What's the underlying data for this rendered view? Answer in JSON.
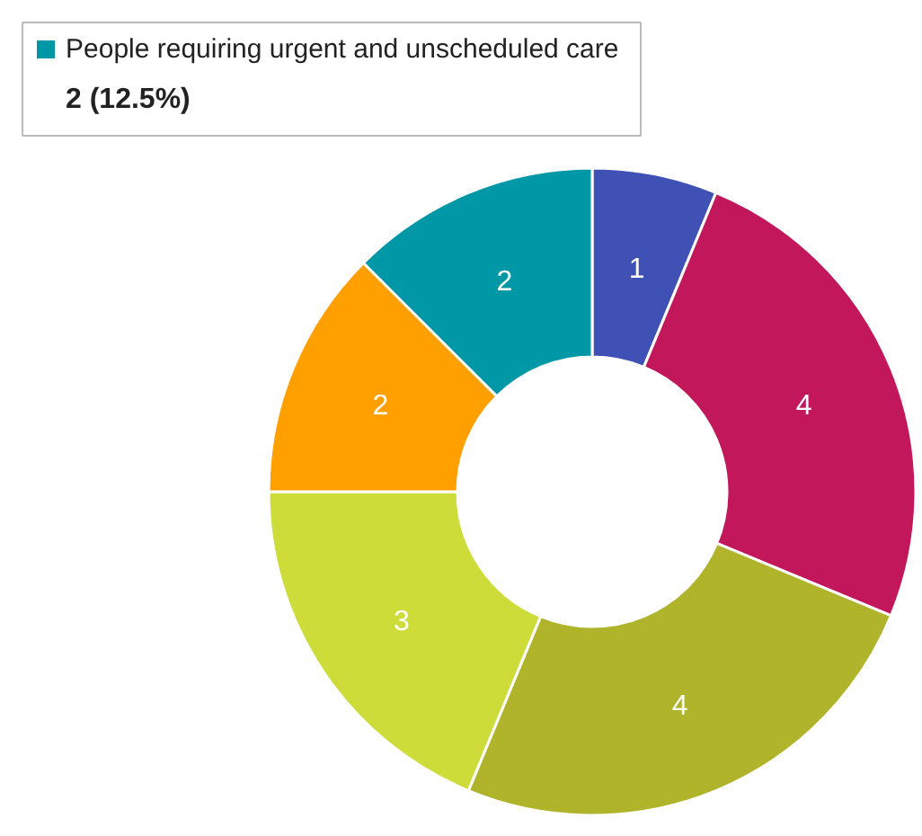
{
  "chart_data": {
    "type": "donut",
    "categories": [
      null,
      null,
      null,
      null,
      null,
      "People requiring urgent and unscheduled care"
    ],
    "values": [
      1,
      4,
      4,
      3,
      2,
      2
    ],
    "colors": [
      "#3f51b5",
      "#c2185b",
      "#afb42b",
      "#cddc39",
      "#ff9f00",
      "#0097a7"
    ],
    "data_labels": true,
    "annotations": [
      "2 (12.5%)"
    ]
  }
}
